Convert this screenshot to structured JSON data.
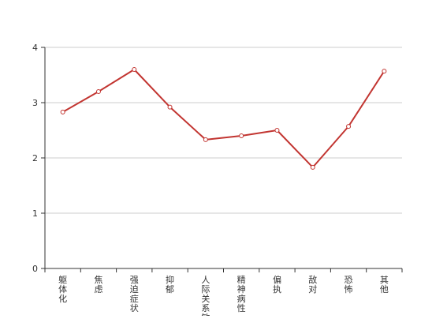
{
  "chart_data": {
    "type": "line",
    "categories": [
      "躯体化",
      "焦虑",
      "强迫症状",
      "抑郁",
      "人际关系敏感",
      "精神病性",
      "偏执",
      "敌对",
      "恐怖",
      "其他"
    ],
    "values": [
      2.83,
      3.2,
      3.6,
      2.92,
      2.33,
      2.4,
      2.5,
      1.83,
      2.57,
      3.57
    ],
    "ylim": [
      0,
      4
    ],
    "yticks": [
      0,
      1,
      2,
      3,
      4
    ],
    "grid": true,
    "legend": "none",
    "colors": {
      "line": "#c23531",
      "grid": "#cccccc",
      "axis": "#333333"
    }
  }
}
